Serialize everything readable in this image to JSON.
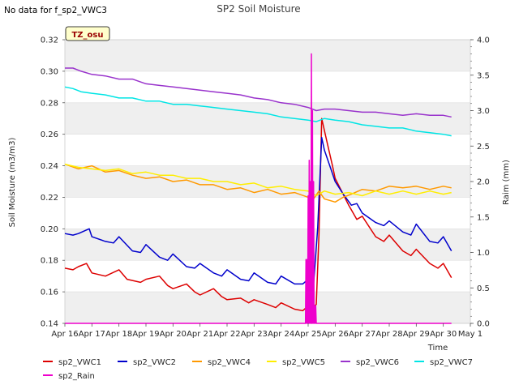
{
  "header": {
    "no_data_message": "No data for f_sp2_VWC3"
  },
  "site_badge": "TZ_osu",
  "chart_data": {
    "type": "line",
    "title": "SP2 Soil Moisture",
    "ylabel": "Soil Moisture (m3/m3)",
    "y2label": "Raim (mm)",
    "xlabel": "Time",
    "ylim": [
      0.14,
      0.32
    ],
    "y2lim": [
      0.0,
      4.0
    ],
    "xlim": [
      0,
      15
    ],
    "yticks": [
      0.14,
      0.16,
      0.18,
      0.2,
      0.22,
      0.24,
      0.26,
      0.28,
      0.3,
      0.32
    ],
    "ytick_labels": [
      "0.14",
      "0.16",
      "0.18",
      "0.20",
      "0.22",
      "0.24",
      "0.26",
      "0.28",
      "0.30",
      "0.32"
    ],
    "y2ticks": [
      0.0,
      0.5,
      1.0,
      1.5,
      2.0,
      2.5,
      3.0,
      3.5,
      4.0
    ],
    "y2tick_labels": [
      "0.0",
      "0.5",
      "1.0",
      "1.5",
      "2.0",
      "2.5",
      "3.0",
      "3.5",
      "4.0"
    ],
    "x_tick_labels": [
      "Apr 16",
      "Apr 17",
      "Apr 18",
      "Apr 19",
      "Apr 20",
      "Apr 21",
      "Apr 22",
      "Apr 23",
      "Apr 24",
      "Apr 25",
      "Apr 26",
      "Apr 27",
      "Apr 28",
      "Apr 29",
      "Apr 30",
      "May 1"
    ],
    "series": [
      {
        "name": "sp2_VWC1",
        "color": "#dd0000",
        "axis": "left",
        "x": [
          0.0,
          0.3,
          0.5,
          0.8,
          1.0,
          1.5,
          2.0,
          2.3,
          2.8,
          3.0,
          3.5,
          3.8,
          4.0,
          4.5,
          4.8,
          5.0,
          5.5,
          5.8,
          6.0,
          6.5,
          6.8,
          7.0,
          7.5,
          7.8,
          8.0,
          8.5,
          8.8,
          9.0,
          9.15,
          9.3,
          9.4,
          9.5,
          9.7,
          9.9,
          10.0,
          10.5,
          10.8,
          11.0,
          11.5,
          11.8,
          12.0,
          12.5,
          12.8,
          13.0,
          13.5,
          13.8,
          14.0,
          14.3
        ],
        "values": [
          0.175,
          0.174,
          0.176,
          0.178,
          0.172,
          0.17,
          0.174,
          0.168,
          0.166,
          0.168,
          0.17,
          0.164,
          0.162,
          0.165,
          0.16,
          0.158,
          0.162,
          0.157,
          0.155,
          0.156,
          0.153,
          0.155,
          0.152,
          0.15,
          0.153,
          0.149,
          0.148,
          0.151,
          0.15,
          0.152,
          0.196,
          0.27,
          0.255,
          0.24,
          0.232,
          0.215,
          0.206,
          0.208,
          0.195,
          0.192,
          0.196,
          0.186,
          0.183,
          0.187,
          0.178,
          0.175,
          0.178,
          0.169
        ]
      },
      {
        "name": "sp2_VWC2",
        "color": "#0000cc",
        "axis": "left",
        "x": [
          0.0,
          0.3,
          0.5,
          0.9,
          1.0,
          1.5,
          1.8,
          2.0,
          2.5,
          2.8,
          3.0,
          3.5,
          3.8,
          4.0,
          4.5,
          4.8,
          5.0,
          5.5,
          5.8,
          6.0,
          6.5,
          6.8,
          7.0,
          7.5,
          7.8,
          8.0,
          8.5,
          8.8,
          9.0,
          9.2,
          9.35,
          9.5,
          9.6,
          9.8,
          10.0,
          10.3,
          10.6,
          10.8,
          11.0,
          11.5,
          11.8,
          12.0,
          12.5,
          12.8,
          13.0,
          13.5,
          13.8,
          14.0,
          14.3
        ],
        "values": [
          0.197,
          0.196,
          0.197,
          0.2,
          0.195,
          0.192,
          0.191,
          0.195,
          0.186,
          0.185,
          0.19,
          0.182,
          0.18,
          0.184,
          0.176,
          0.175,
          0.178,
          0.172,
          0.17,
          0.174,
          0.168,
          0.167,
          0.172,
          0.166,
          0.165,
          0.17,
          0.165,
          0.165,
          0.168,
          0.165,
          0.2,
          0.258,
          0.25,
          0.24,
          0.23,
          0.222,
          0.215,
          0.216,
          0.21,
          0.204,
          0.202,
          0.205,
          0.198,
          0.196,
          0.203,
          0.192,
          0.191,
          0.195,
          0.186
        ]
      },
      {
        "name": "sp2_VWC4",
        "color": "#ff9900",
        "axis": "left",
        "x": [
          0.0,
          0.5,
          1.0,
          1.5,
          2.0,
          2.5,
          3.0,
          3.5,
          4.0,
          4.5,
          5.0,
          5.5,
          6.0,
          6.5,
          7.0,
          7.5,
          8.0,
          8.5,
          9.0,
          9.2,
          9.4,
          9.6,
          10.0,
          10.3,
          10.6,
          11.0,
          11.5,
          12.0,
          12.5,
          13.0,
          13.5,
          14.0,
          14.3
        ],
        "values": [
          0.241,
          0.238,
          0.24,
          0.236,
          0.237,
          0.234,
          0.232,
          0.233,
          0.23,
          0.231,
          0.228,
          0.228,
          0.225,
          0.226,
          0.223,
          0.225,
          0.222,
          0.223,
          0.22,
          0.219,
          0.224,
          0.219,
          0.217,
          0.22,
          0.222,
          0.225,
          0.224,
          0.227,
          0.226,
          0.227,
          0.225,
          0.227,
          0.226
        ]
      },
      {
        "name": "sp2_VWC5",
        "color": "#ffee00",
        "axis": "left",
        "x": [
          0.0,
          0.5,
          1.0,
          1.5,
          2.0,
          2.5,
          3.0,
          3.5,
          4.0,
          4.5,
          5.0,
          5.5,
          6.0,
          6.5,
          7.0,
          7.5,
          8.0,
          8.5,
          9.0,
          9.3,
          9.6,
          10.0,
          10.5,
          11.0,
          11.5,
          12.0,
          12.5,
          13.0,
          13.5,
          14.0,
          14.3
        ],
        "values": [
          0.241,
          0.239,
          0.238,
          0.237,
          0.238,
          0.235,
          0.236,
          0.234,
          0.234,
          0.232,
          0.232,
          0.23,
          0.23,
          0.228,
          0.229,
          0.226,
          0.227,
          0.225,
          0.224,
          0.221,
          0.224,
          0.222,
          0.223,
          0.221,
          0.224,
          0.222,
          0.224,
          0.222,
          0.224,
          0.222,
          0.223
        ]
      },
      {
        "name": "sp2_VWC6",
        "color": "#9933cc",
        "axis": "left",
        "x": [
          0.0,
          0.3,
          0.6,
          1.0,
          1.5,
          2.0,
          2.5,
          3.0,
          3.5,
          4.0,
          4.5,
          5.0,
          5.5,
          6.0,
          6.5,
          7.0,
          7.5,
          8.0,
          8.5,
          9.0,
          9.3,
          9.6,
          10.0,
          10.5,
          11.0,
          11.5,
          12.0,
          12.5,
          13.0,
          13.5,
          14.0,
          14.3
        ],
        "values": [
          0.302,
          0.302,
          0.3,
          0.298,
          0.297,
          0.295,
          0.295,
          0.292,
          0.291,
          0.29,
          0.289,
          0.288,
          0.287,
          0.286,
          0.285,
          0.283,
          0.282,
          0.28,
          0.279,
          0.277,
          0.275,
          0.276,
          0.276,
          0.275,
          0.274,
          0.274,
          0.273,
          0.272,
          0.273,
          0.272,
          0.272,
          0.271
        ]
      },
      {
        "name": "sp2_VWC7",
        "color": "#00e5e5",
        "axis": "left",
        "x": [
          0.0,
          0.3,
          0.6,
          1.0,
          1.5,
          2.0,
          2.5,
          3.0,
          3.5,
          4.0,
          4.5,
          5.0,
          5.5,
          6.0,
          6.5,
          7.0,
          7.5,
          8.0,
          8.5,
          9.0,
          9.3,
          9.6,
          10.0,
          10.5,
          11.0,
          11.5,
          12.0,
          12.5,
          13.0,
          13.5,
          14.0,
          14.3
        ],
        "values": [
          0.29,
          0.289,
          0.287,
          0.286,
          0.285,
          0.283,
          0.283,
          0.281,
          0.281,
          0.279,
          0.279,
          0.278,
          0.277,
          0.276,
          0.275,
          0.274,
          0.273,
          0.271,
          0.27,
          0.269,
          0.268,
          0.27,
          0.269,
          0.268,
          0.266,
          0.265,
          0.264,
          0.264,
          0.262,
          0.261,
          0.26,
          0.259
        ]
      },
      {
        "name": "sp2_Rain",
        "color": "#ee00cc",
        "axis": "right",
        "x": [
          0.0,
          8.9,
          8.92,
          8.94,
          8.96,
          8.98,
          9.0,
          9.02,
          9.04,
          9.06,
          9.08,
          9.1,
          9.12,
          9.14,
          9.16,
          9.18,
          9.2,
          9.22,
          9.24,
          9.26,
          9.28,
          9.3,
          9.32,
          9.34,
          14.3
        ],
        "values": [
          0.0,
          0.0,
          0.9,
          0.0,
          0.9,
          0.0,
          1.8,
          0.0,
          2.3,
          0.0,
          2.0,
          0.0,
          3.8,
          0.0,
          3.0,
          0.0,
          2.0,
          0.0,
          0.25,
          0.0,
          0.25,
          0.0,
          0.0,
          0.0,
          0.0
        ]
      }
    ]
  },
  "legend": {
    "items": [
      {
        "label": "sp2_VWC1",
        "color": "#dd0000"
      },
      {
        "label": "sp2_VWC2",
        "color": "#0000cc"
      },
      {
        "label": "sp2_VWC4",
        "color": "#ff9900"
      },
      {
        "label": "sp2_VWC5",
        "color": "#ffee00"
      },
      {
        "label": "sp2_VWC6",
        "color": "#9933cc"
      },
      {
        "label": "sp2_VWC7",
        "color": "#00e5e5"
      },
      {
        "label": "sp2_Rain",
        "color": "#ee00cc"
      }
    ]
  }
}
